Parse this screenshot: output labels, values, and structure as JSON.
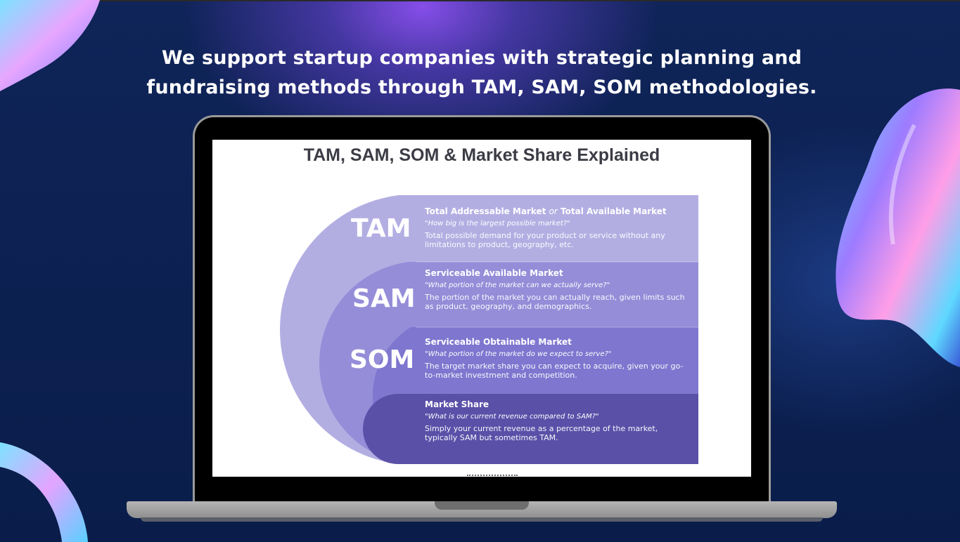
{
  "headline": {
    "line1": "We support startup companies with strategic planning and",
    "line2": "fundraising methods through TAM, SAM, SOM methodologies."
  },
  "diagram": {
    "title": "TAM, SAM, SOM & Market Share Explained",
    "tiers": [
      {
        "abbr": "TAM",
        "heading_a": "Total Addressable Market",
        "heading_or": "or",
        "heading_b": "Total Available Market",
        "question": "\"How big is the largest possible market?\"",
        "description": "Total possible demand for your product or service without any limitations to product, geography, etc.",
        "color": "#b3aee2"
      },
      {
        "abbr": "SAM",
        "heading_a": "Serviceable Available Market",
        "question": "\"What portion of the market can we actually serve?\"",
        "description": "The portion of the market you can actually reach, given limits such as product, geography, and demographics.",
        "color": "#958dd8"
      },
      {
        "abbr": "SOM",
        "heading_a": "Serviceable Obtainable Market",
        "question": "\"What portion of the market do we expect to serve?\"",
        "description": "The target market share you can expect to acquire, given your go-to-market investment and competition.",
        "color": "#7e76cf"
      },
      {
        "abbr": "",
        "heading_a": "Market Share",
        "question": "\"What is our current revenue compared to SAM?\"",
        "description": "Simply your current revenue as a percentage of the market, typically SAM but sometimes TAM.",
        "color": "#5b50a8"
      }
    ]
  },
  "colors": {
    "background": "#0b1e4e",
    "glow": "#8c50f0",
    "laptop_frame": "#9a9a9a"
  },
  "icons": [
    "holographic-blob-top-left",
    "holographic-blob-right",
    "holographic-ring-bottom-left"
  ]
}
